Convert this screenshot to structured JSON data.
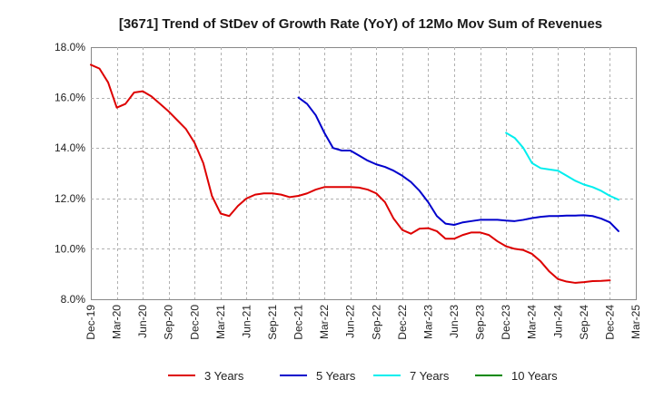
{
  "chart_data": {
    "type": "line",
    "title": "[3671]  Trend of StDev of Growth Rate (YoY) of 12Mo Mov Sum of Revenues",
    "xlabel": "",
    "ylabel": "",
    "ylim": [
      8.0,
      18.0
    ],
    "y_ticks": [
      "8.0%",
      "10.0%",
      "12.0%",
      "14.0%",
      "16.0%",
      "18.0%"
    ],
    "y_tick_values": [
      8,
      10,
      12,
      14,
      16,
      18
    ],
    "x_ticks": [
      "Dec-19",
      "Mar-20",
      "Jun-20",
      "Sep-20",
      "Dec-20",
      "Mar-21",
      "Jun-21",
      "Sep-21",
      "Dec-21",
      "Mar-22",
      "Jun-22",
      "Sep-22",
      "Dec-22",
      "Mar-23",
      "Jun-23",
      "Sep-23",
      "Dec-23",
      "Mar-24",
      "Jun-24",
      "Sep-24",
      "Dec-24",
      "Mar-25"
    ],
    "x_months_total": 63,
    "grid": true,
    "legend_position": "bottom",
    "series": [
      {
        "name": "3 Years",
        "color": "#dd0000",
        "start_month": 0,
        "values": [
          17.3,
          17.15,
          16.6,
          15.6,
          15.75,
          16.2,
          16.25,
          16.05,
          15.75,
          15.45,
          15.1,
          14.75,
          14.2,
          13.4,
          12.1,
          11.4,
          11.3,
          11.7,
          12.0,
          12.15,
          12.2,
          12.2,
          12.15,
          12.05,
          12.1,
          12.2,
          12.35,
          12.45,
          12.45,
          12.45,
          12.45,
          12.43,
          12.35,
          12.2,
          11.85,
          11.2,
          10.75,
          10.6,
          10.8,
          10.82,
          10.7,
          10.4,
          10.4,
          10.55,
          10.65,
          10.65,
          10.55,
          10.3,
          10.1,
          10.0,
          9.95,
          9.8,
          9.5,
          9.1,
          8.8,
          8.7,
          8.65,
          8.68,
          8.72,
          8.73,
          8.75
        ]
      },
      {
        "name": "5 Years",
        "color": "#0000cc",
        "start_month": 24,
        "values": [
          16.0,
          15.75,
          15.3,
          14.6,
          14.0,
          13.9,
          13.9,
          13.7,
          13.5,
          13.35,
          13.25,
          13.1,
          12.9,
          12.65,
          12.3,
          11.85,
          11.3,
          11.0,
          10.95,
          11.05,
          11.1,
          11.15,
          11.15,
          11.15,
          11.12,
          11.1,
          11.15,
          11.22,
          11.27,
          11.3,
          11.3,
          11.32,
          11.32,
          11.33,
          11.3,
          11.2,
          11.05,
          10.7
        ]
      },
      {
        "name": "7 Years",
        "color": "#00eeee",
        "start_month": 48,
        "values": [
          14.6,
          14.4,
          14.0,
          13.4,
          13.2,
          13.15,
          13.1,
          12.9,
          12.7,
          12.55,
          12.45,
          12.3,
          12.1,
          11.95
        ]
      },
      {
        "name": "10 Years",
        "color": "#008800",
        "start_month": 0,
        "values": []
      }
    ]
  }
}
